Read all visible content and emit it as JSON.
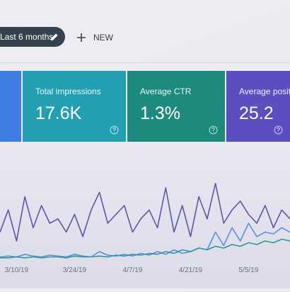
{
  "toolbar": {
    "filter": "Last 6 months",
    "new_button": "NEW"
  },
  "cards": [
    {
      "label": "Total impressions",
      "value": "17.6K",
      "color": "#22a0b2"
    },
    {
      "label": "Average CTR",
      "value": "1.3%",
      "color": "#1c8b7c"
    },
    {
      "label": "Average position",
      "value": "25.2",
      "color": "#5b4ec0"
    }
  ],
  "chart_data": {
    "type": "line",
    "categories": [
      null,
      null,
      "3/10/19",
      null,
      null,
      null,
      null,
      null,
      null,
      "3/24/19",
      null,
      null,
      null,
      null,
      null,
      null,
      "4/7/19",
      null,
      null,
      null,
      null,
      null,
      null,
      "4/21/19",
      null,
      null,
      null,
      null,
      null,
      null,
      "5/5/19",
      null,
      null,
      null,
      null,
      null
    ],
    "ylim": [
      0,
      100
    ],
    "series": [
      {
        "color": "#5a57a6",
        "values": [
          30,
          55,
          20,
          70,
          35,
          60,
          40,
          45,
          30,
          50,
          25,
          55,
          75,
          40,
          50,
          60,
          30,
          45,
          55,
          35,
          80,
          30,
          60,
          25,
          70,
          45,
          85,
          40,
          55,
          65,
          50,
          40,
          60,
          35,
          55,
          45
        ]
      },
      {
        "color": "#5b8fd6",
        "values": [
          2,
          3,
          2,
          5,
          3,
          2,
          4,
          3,
          2,
          5,
          3,
          2,
          8,
          4,
          3,
          5,
          3,
          6,
          4,
          8,
          5,
          10,
          6,
          8,
          12,
          10,
          30,
          15,
          35,
          20,
          40,
          25,
          30,
          28,
          35,
          30
        ]
      },
      {
        "color": "#2b9a9a",
        "values": [
          1,
          1,
          2,
          1,
          2,
          1,
          2,
          2,
          1,
          3,
          2,
          2,
          3,
          2,
          4,
          3,
          5,
          4,
          6,
          5,
          8,
          6,
          10,
          8,
          12,
          10,
          14,
          12,
          16,
          14,
          18,
          16,
          20,
          18,
          22,
          20
        ]
      }
    ]
  }
}
